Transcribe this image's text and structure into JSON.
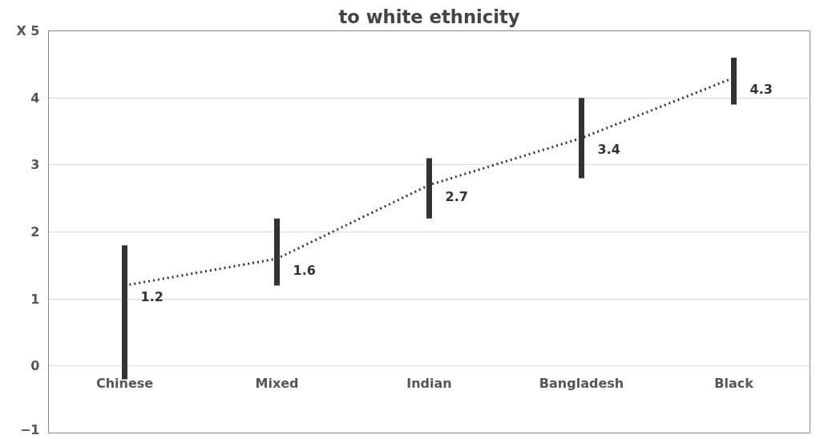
{
  "chart_data": {
    "type": "line",
    "title": "to white ethnicity",
    "categories": [
      "Chinese",
      "Mixed",
      "Indian",
      "Bangladesh",
      "Black"
    ],
    "series": [
      {
        "color": "#333333",
        "values": [
          1.2,
          1.6,
          2.7,
          3.4,
          4.3
        ],
        "errors": [
          [
            -0.2,
            1.8
          ],
          [
            1.2,
            2.2
          ],
          [
            2.2,
            3.1
          ],
          [
            2.8,
            4.0
          ],
          [
            3.9,
            4.6
          ]
        ]
      }
    ],
    "ylim": [
      -1,
      5
    ],
    "yticks": [
      -1,
      0,
      1,
      2,
      3,
      4,
      {
        "value": 5,
        "label": "X 5"
      }
    ],
    "grid": "y",
    "line_style": "dotted",
    "marker": "none",
    "data_labels": true
  }
}
